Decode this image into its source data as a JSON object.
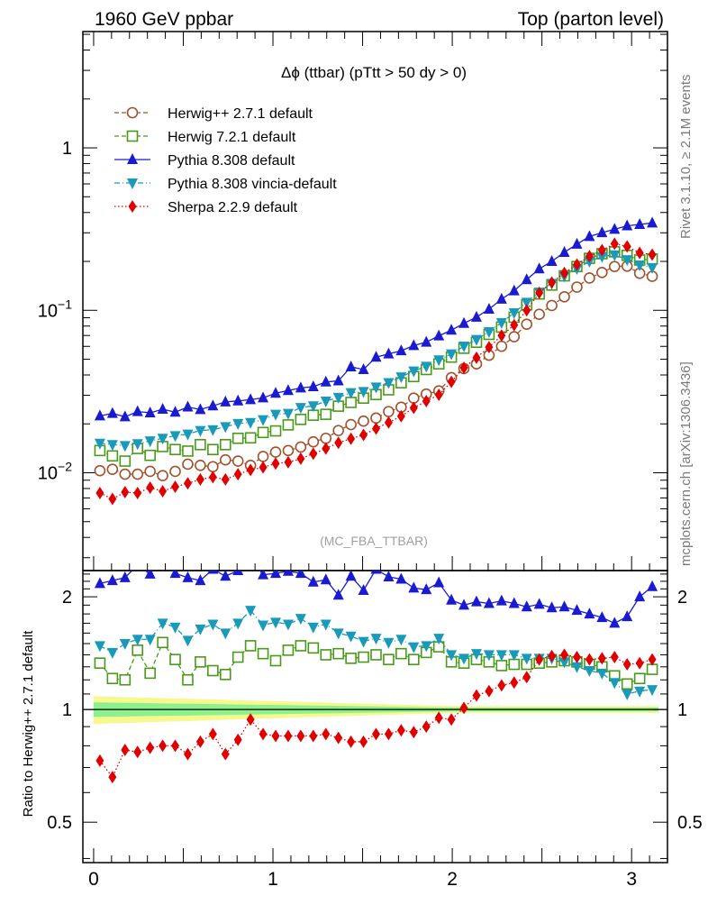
{
  "header": {
    "left": "1960 GeV ppbar",
    "right": "Top (parton level)"
  },
  "side_labels": {
    "rivet": "Rivet 3.1.10, ≥ 2.1M events",
    "mcplots": "mcplots.cern.ch [arXiv:1306.3436]"
  },
  "chart_data": [
    {
      "type": "line",
      "panel": "main",
      "title": "Δϕ (ttbar) (pTtt > 50 dy > 0)",
      "watermark": "(MC_FBA_TTBAR)",
      "yscale": "log",
      "xlim": [
        -0.06,
        3.2
      ],
      "ylim": [
        0.0025,
        5.2
      ],
      "xlabel": "",
      "ylabel": "",
      "yticks": [
        {
          "v": 0.01,
          "base": "10",
          "exp": "−2"
        },
        {
          "v": 0.1,
          "base": "10",
          "exp": "−1"
        },
        {
          "v": 1,
          "base": "1",
          "exp": ""
        }
      ],
      "legend_position": "top-left",
      "x": [
        0.035,
        0.105,
        0.175,
        0.245,
        0.315,
        0.385,
        0.455,
        0.525,
        0.595,
        0.665,
        0.735,
        0.805,
        0.875,
        0.945,
        1.015,
        1.085,
        1.155,
        1.225,
        1.295,
        1.365,
        1.435,
        1.505,
        1.575,
        1.645,
        1.715,
        1.785,
        1.855,
        1.925,
        1.995,
        2.065,
        2.135,
        2.205,
        2.275,
        2.345,
        2.415,
        2.485,
        2.555,
        2.625,
        2.695,
        2.765,
        2.835,
        2.905,
        2.975,
        3.045,
        3.115
      ],
      "series": [
        {
          "name": "Herwig++ 2.7.1 default",
          "color": "#a0522d",
          "marker": "open-circle",
          "dash": "5,3",
          "values": [
            0.0103,
            0.0105,
            0.0098,
            0.0098,
            0.0102,
            0.0096,
            0.0102,
            0.0113,
            0.0111,
            0.0109,
            0.012,
            0.0118,
            0.0111,
            0.0126,
            0.0134,
            0.0137,
            0.0144,
            0.0155,
            0.0163,
            0.0182,
            0.0198,
            0.0208,
            0.0217,
            0.0238,
            0.0253,
            0.0288,
            0.0305,
            0.0319,
            0.0385,
            0.0438,
            0.0468,
            0.0529,
            0.0601,
            0.0688,
            0.0821,
            0.0945,
            0.107,
            0.121,
            0.139,
            0.158,
            0.171,
            0.186,
            0.187,
            0.169,
            0.162
          ]
        },
        {
          "name": "Herwig 7.2.1 default",
          "color": "#4a9a1a",
          "marker": "open-square",
          "dash": "5,3",
          "values": [
            0.0137,
            0.0127,
            0.0118,
            0.0141,
            0.0128,
            0.0145,
            0.0139,
            0.0136,
            0.0149,
            0.0139,
            0.0149,
            0.0163,
            0.0164,
            0.0177,
            0.0181,
            0.0197,
            0.0213,
            0.0226,
            0.0229,
            0.0257,
            0.0271,
            0.0288,
            0.0303,
            0.0324,
            0.0358,
            0.0391,
            0.0432,
            0.0468,
            0.0515,
            0.0584,
            0.0636,
            0.0711,
            0.0788,
            0.0907,
            0.108,
            0.126,
            0.143,
            0.163,
            0.186,
            0.209,
            0.223,
            0.229,
            0.218,
            0.204,
            0.207
          ]
        },
        {
          "name": "Pythia 8.308 default",
          "color": "#1a1ad0",
          "marker": "filled-triangle-up",
          "dash": "",
          "values": [
            0.0224,
            0.0232,
            0.0221,
            0.0238,
            0.0234,
            0.0246,
            0.0236,
            0.0254,
            0.0245,
            0.0258,
            0.0273,
            0.0277,
            0.0282,
            0.0289,
            0.0309,
            0.0321,
            0.0333,
            0.0339,
            0.0362,
            0.0368,
            0.0449,
            0.0432,
            0.0515,
            0.0539,
            0.0564,
            0.0607,
            0.0637,
            0.0696,
            0.0755,
            0.0831,
            0.0908,
            0.1016,
            0.1172,
            0.1319,
            0.1545,
            0.1801,
            0.2001,
            0.2274,
            0.2552,
            0.2849,
            0.3006,
            0.3155,
            0.3312,
            0.3377,
            0.3451
          ]
        },
        {
          "name": "Pythia 8.308 vincia-default",
          "color": "#1a9aba",
          "marker": "filled-triangle-down",
          "dash": "6,3,1,3",
          "values": [
            0.0152,
            0.0149,
            0.0147,
            0.0151,
            0.0157,
            0.0163,
            0.0169,
            0.0173,
            0.0182,
            0.0184,
            0.0192,
            0.0201,
            0.0204,
            0.0212,
            0.0229,
            0.0232,
            0.0252,
            0.0258,
            0.0276,
            0.0291,
            0.0311,
            0.0316,
            0.0337,
            0.0359,
            0.0389,
            0.0423,
            0.0452,
            0.0495,
            0.0539,
            0.0602,
            0.0661,
            0.0738,
            0.0841,
            0.0965,
            0.1121,
            0.1294,
            0.1465,
            0.1625,
            0.1806,
            0.2001,
            0.2142,
            0.2193,
            0.2049,
            0.1901,
            0.1832
          ]
        },
        {
          "name": "Sherpa 2.2.9 default",
          "color": "#e00000",
          "marker": "filled-diamond",
          "dash": "1.5,2.5",
          "values": [
            0.0075,
            0.0069,
            0.0076,
            0.0075,
            0.0081,
            0.0077,
            0.0082,
            0.0086,
            0.0091,
            0.0094,
            0.0091,
            0.0098,
            0.0104,
            0.0108,
            0.0114,
            0.0116,
            0.0122,
            0.0131,
            0.0141,
            0.0153,
            0.0162,
            0.0171,
            0.0187,
            0.0204,
            0.0223,
            0.0251,
            0.0276,
            0.0302,
            0.0363,
            0.0443,
            0.0511,
            0.0593,
            0.0699,
            0.0811,
            0.1001,
            0.1281,
            0.1485,
            0.1698,
            0.1912,
            0.2153,
            0.2345,
            0.2572,
            0.2472,
            0.2255,
            0.2201
          ]
        }
      ]
    },
    {
      "type": "line",
      "panel": "ratio",
      "ylabel": "Ratio to Herwig++ 2.7.1 default",
      "yscale": "log",
      "xlim": [
        -0.06,
        3.2
      ],
      "ylim": [
        0.39,
        2.35
      ],
      "xticks": [
        0,
        1,
        2,
        3
      ],
      "yticks": [
        0.5,
        1,
        2
      ],
      "band": {
        "inner_color": "#8cf08c",
        "outer_color": "#f8f890",
        "inner_halfwidth_start": 0.045,
        "inner_halfwidth_end": 0.012,
        "outer_halfwidth_start": 0.085,
        "outer_halfwidth_end": 0.022
      },
      "series_ratio": [
        {
          "name": "Herwig 7.2.1 default",
          "values": [
            1.33,
            1.21,
            1.2,
            1.44,
            1.25,
            1.51,
            1.36,
            1.2,
            1.34,
            1.27,
            1.24,
            1.38,
            1.48,
            1.41,
            1.35,
            1.44,
            1.48,
            1.46,
            1.4,
            1.41,
            1.37,
            1.38,
            1.4,
            1.36,
            1.41,
            1.36,
            1.42,
            1.47,
            1.34,
            1.33,
            1.36,
            1.34,
            1.31,
            1.32,
            1.32,
            1.33,
            1.34,
            1.35,
            1.34,
            1.32,
            1.3,
            1.23,
            1.17,
            1.21,
            1.28
          ]
        },
        {
          "name": "Pythia 8.308 default",
          "values": [
            2.17,
            2.21,
            2.25,
            2.43,
            2.3,
            2.56,
            2.31,
            2.25,
            2.21,
            2.37,
            2.27,
            2.35,
            2.54,
            2.29,
            2.31,
            2.34,
            2.31,
            2.19,
            2.22,
            2.02,
            2.27,
            2.08,
            2.37,
            2.26,
            2.23,
            2.11,
            2.09,
            2.18,
            1.96,
            1.9,
            1.94,
            1.92,
            1.95,
            1.92,
            1.88,
            1.91,
            1.87,
            1.88,
            1.84,
            1.8,
            1.76,
            1.7,
            1.77,
            2.0,
            2.13
          ]
        },
        {
          "name": "Pythia 8.308 vincia-default",
          "values": [
            1.48,
            1.42,
            1.5,
            1.54,
            1.54,
            1.7,
            1.66,
            1.53,
            1.64,
            1.69,
            1.6,
            1.7,
            1.84,
            1.68,
            1.71,
            1.69,
            1.75,
            1.66,
            1.69,
            1.6,
            1.57,
            1.52,
            1.55,
            1.51,
            1.54,
            1.47,
            1.48,
            1.55,
            1.4,
            1.37,
            1.41,
            1.4,
            1.4,
            1.4,
            1.37,
            1.37,
            1.37,
            1.34,
            1.3,
            1.27,
            1.25,
            1.18,
            1.1,
            1.12,
            1.13
          ]
        },
        {
          "name": "Sherpa 2.2.9 default",
          "values": [
            0.73,
            0.66,
            0.78,
            0.77,
            0.79,
            0.8,
            0.8,
            0.76,
            0.82,
            0.86,
            0.76,
            0.83,
            0.94,
            0.86,
            0.85,
            0.85,
            0.85,
            0.85,
            0.86,
            0.84,
            0.82,
            0.82,
            0.86,
            0.86,
            0.88,
            0.87,
            0.9,
            0.95,
            0.94,
            1.01,
            1.09,
            1.12,
            1.16,
            1.18,
            1.22,
            1.36,
            1.39,
            1.4,
            1.38,
            1.36,
            1.37,
            1.38,
            1.32,
            1.33,
            1.36
          ]
        }
      ]
    }
  ]
}
